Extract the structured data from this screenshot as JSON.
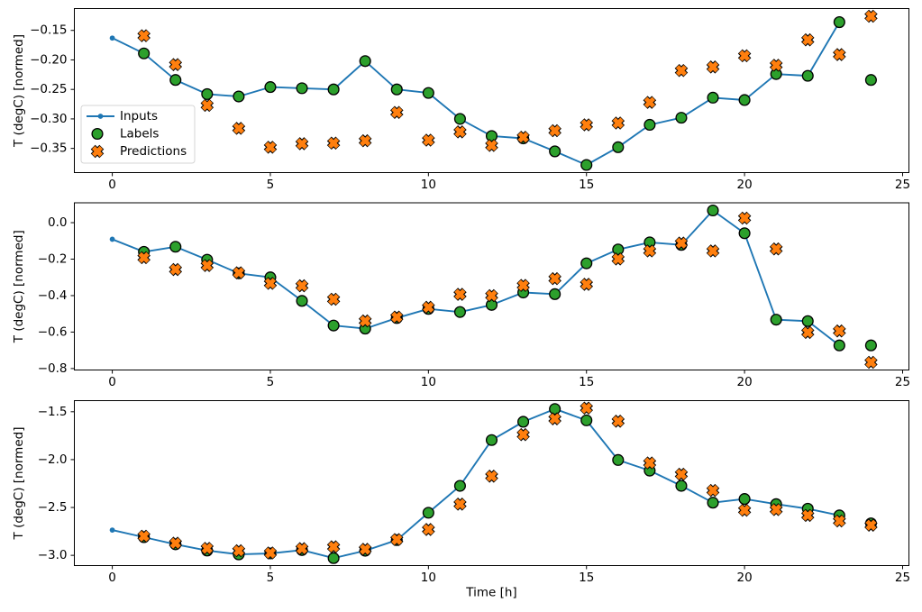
{
  "figure": {
    "background": "#ffffff",
    "xlabel": "Time [h]",
    "ylabel": "T (degC) [normed]",
    "colors": {
      "inputs": "#1f77b4",
      "labels": "#2ca02c",
      "predictions": "#ff7f0e",
      "marker_edge": "#000000",
      "spine": "#000000",
      "text": "#000000",
      "legend_border": "#d5d5d5",
      "legend_bg": "#ffffff"
    },
    "legend": {
      "position": "upper-left-area of first subplot",
      "items": [
        {
          "label": "Inputs",
          "marker": "line-with-dot"
        },
        {
          "label": "Labels",
          "marker": "circle"
        },
        {
          "label": "Predictions",
          "marker": "x-cross"
        }
      ]
    }
  },
  "chart_data": [
    {
      "type": "line",
      "title": "",
      "xlabel": "",
      "ylabel": "T (degC) [normed]",
      "xlim": [
        -1.2,
        25.2
      ],
      "ylim": [
        -0.391,
        -0.113
      ],
      "xtick_values": [
        0,
        5,
        10,
        15,
        20,
        25
      ],
      "xtick_labels": [
        "0",
        "5",
        "10",
        "15",
        "20",
        "25"
      ],
      "ytick_values": [
        -0.15,
        -0.2,
        -0.25,
        -0.3,
        -0.35
      ],
      "ytick_labels": [
        "−0.15",
        "−0.20",
        "−0.25",
        "−0.30",
        "−0.35"
      ],
      "grid": false,
      "legend": true,
      "series": [
        {
          "name": "Inputs",
          "style": "line-dot",
          "x": [
            0,
            1,
            2,
            3,
            4,
            5,
            6,
            7,
            8,
            9,
            10,
            11,
            12,
            13,
            14,
            15,
            16,
            17,
            18,
            19,
            20,
            21,
            22,
            23
          ],
          "y": [
            -0.163,
            -0.189,
            -0.234,
            -0.258,
            -0.262,
            -0.246,
            -0.248,
            -0.25,
            -0.202,
            -0.25,
            -0.256,
            -0.3,
            -0.329,
            -0.333,
            -0.355,
            -0.378,
            -0.348,
            -0.31,
            -0.298,
            -0.264,
            -0.268,
            -0.224,
            -0.227,
            -0.136
          ]
        },
        {
          "name": "Labels",
          "style": "circle",
          "x": [
            1,
            2,
            3,
            4,
            5,
            6,
            7,
            8,
            9,
            10,
            11,
            12,
            13,
            14,
            15,
            16,
            17,
            18,
            19,
            20,
            21,
            22,
            23,
            24
          ],
          "y": [
            -0.189,
            -0.234,
            -0.258,
            -0.262,
            -0.246,
            -0.248,
            -0.25,
            -0.202,
            -0.25,
            -0.256,
            -0.3,
            -0.329,
            -0.333,
            -0.355,
            -0.378,
            -0.348,
            -0.31,
            -0.298,
            -0.264,
            -0.268,
            -0.224,
            -0.227,
            -0.136,
            -0.234
          ]
        },
        {
          "name": "Predictions",
          "style": "x-cross",
          "x": [
            1,
            2,
            3,
            4,
            5,
            6,
            7,
            8,
            9,
            10,
            11,
            12,
            13,
            14,
            15,
            16,
            17,
            18,
            19,
            20,
            21,
            22,
            23,
            24
          ],
          "y": [
            -0.159,
            -0.208,
            -0.277,
            -0.316,
            -0.348,
            -0.342,
            -0.341,
            -0.337,
            -0.289,
            -0.336,
            -0.322,
            -0.345,
            -0.331,
            -0.32,
            -0.31,
            -0.307,
            -0.272,
            -0.218,
            -0.212,
            -0.193,
            -0.209,
            -0.166,
            -0.191,
            -0.126
          ]
        }
      ]
    },
    {
      "type": "line",
      "title": "",
      "xlabel": "",
      "ylabel": "T (degC) [normed]",
      "xlim": [
        -1.2,
        25.2
      ],
      "ylim": [
        -0.808,
        0.109
      ],
      "xtick_values": [
        0,
        5,
        10,
        15,
        20,
        25
      ],
      "xtick_labels": [
        "0",
        "5",
        "10",
        "15",
        "20",
        "25"
      ],
      "ytick_values": [
        0.0,
        -0.2,
        -0.4,
        -0.6,
        -0.8
      ],
      "ytick_labels": [
        "0.0",
        "−0.2",
        "−0.4",
        "−0.6",
        "−0.8"
      ],
      "grid": false,
      "legend": false,
      "series": [
        {
          "name": "Inputs",
          "style": "line-dot",
          "x": [
            0,
            1,
            2,
            3,
            4,
            5,
            6,
            7,
            8,
            9,
            10,
            11,
            12,
            13,
            14,
            15,
            16,
            17,
            18,
            19,
            20,
            21,
            22,
            23
          ],
          "y": [
            -0.091,
            -0.16,
            -0.132,
            -0.203,
            -0.278,
            -0.3,
            -0.429,
            -0.564,
            -0.581,
            -0.523,
            -0.473,
            -0.49,
            -0.451,
            -0.383,
            -0.392,
            -0.223,
            -0.147,
            -0.108,
            -0.122,
            0.067,
            -0.058,
            -0.532,
            -0.54,
            -0.673
          ]
        },
        {
          "name": "Labels",
          "style": "circle",
          "x": [
            1,
            2,
            3,
            4,
            5,
            6,
            7,
            8,
            9,
            10,
            11,
            12,
            13,
            14,
            15,
            16,
            17,
            18,
            19,
            20,
            21,
            22,
            23,
            24
          ],
          "y": [
            -0.16,
            -0.132,
            -0.203,
            -0.278,
            -0.3,
            -0.429,
            -0.564,
            -0.581,
            -0.523,
            -0.473,
            -0.49,
            -0.451,
            -0.383,
            -0.392,
            -0.223,
            -0.147,
            -0.108,
            -0.122,
            0.067,
            -0.058,
            -0.532,
            -0.54,
            -0.673,
            -0.673
          ]
        },
        {
          "name": "Predictions",
          "style": "x-cross",
          "x": [
            1,
            2,
            3,
            4,
            5,
            6,
            7,
            8,
            9,
            10,
            11,
            12,
            13,
            14,
            15,
            16,
            17,
            18,
            19,
            20,
            21,
            22,
            23,
            24
          ],
          "y": [
            -0.192,
            -0.257,
            -0.235,
            -0.275,
            -0.333,
            -0.346,
            -0.42,
            -0.539,
            -0.518,
            -0.464,
            -0.393,
            -0.4,
            -0.344,
            -0.307,
            -0.338,
            -0.199,
            -0.155,
            -0.112,
            -0.155,
            0.025,
            -0.144,
            -0.602,
            -0.594,
            -0.766
          ]
        }
      ]
    },
    {
      "type": "line",
      "title": "",
      "xlabel": "Time [h]",
      "ylabel": "T (degC) [normed]",
      "xlim": [
        -1.2,
        25.2
      ],
      "ylim": [
        -3.107,
        -1.384
      ],
      "xtick_values": [
        0,
        5,
        10,
        15,
        20,
        25
      ],
      "xtick_labels": [
        "0",
        "5",
        "10",
        "15",
        "20",
        "25"
      ],
      "ytick_values": [
        -1.5,
        -2.0,
        -2.5,
        -3.0
      ],
      "ytick_labels": [
        "−1.5",
        "−2.0",
        "−2.5",
        "−3.0"
      ],
      "grid": false,
      "legend": false,
      "series": [
        {
          "name": "Inputs",
          "style": "line-dot",
          "x": [
            0,
            1,
            2,
            3,
            4,
            5,
            6,
            7,
            8,
            9,
            10,
            11,
            12,
            13,
            14,
            15,
            16,
            17,
            18,
            19,
            20,
            21,
            22,
            23
          ],
          "y": [
            -2.736,
            -2.81,
            -2.885,
            -2.95,
            -2.99,
            -2.98,
            -2.945,
            -3.029,
            -2.952,
            -2.841,
            -2.555,
            -2.274,
            -1.796,
            -1.605,
            -1.471,
            -1.59,
            -2.004,
            -2.115,
            -2.274,
            -2.45,
            -2.411,
            -2.465,
            -2.513,
            -2.583
          ]
        },
        {
          "name": "Labels",
          "style": "circle",
          "x": [
            1,
            2,
            3,
            4,
            5,
            6,
            7,
            8,
            9,
            10,
            11,
            12,
            13,
            14,
            15,
            16,
            17,
            18,
            19,
            20,
            21,
            22,
            23,
            24
          ],
          "y": [
            -2.81,
            -2.885,
            -2.95,
            -2.99,
            -2.98,
            -2.945,
            -3.029,
            -2.952,
            -2.841,
            -2.555,
            -2.274,
            -1.796,
            -1.605,
            -1.471,
            -1.59,
            -2.004,
            -2.115,
            -2.274,
            -2.45,
            -2.411,
            -2.465,
            -2.513,
            -2.583,
            -2.666
          ]
        },
        {
          "name": "Predictions",
          "style": "x-cross",
          "x": [
            1,
            2,
            3,
            4,
            5,
            6,
            7,
            8,
            9,
            10,
            11,
            12,
            13,
            14,
            15,
            16,
            17,
            18,
            19,
            20,
            21,
            22,
            23,
            24
          ],
          "y": [
            -2.8,
            -2.873,
            -2.927,
            -2.952,
            -2.975,
            -2.93,
            -2.911,
            -2.937,
            -2.835,
            -2.73,
            -2.465,
            -2.173,
            -1.739,
            -1.574,
            -1.462,
            -1.599,
            -2.035,
            -2.153,
            -2.322,
            -2.529,
            -2.522,
            -2.583,
            -2.641,
            -2.685
          ]
        }
      ]
    }
  ]
}
